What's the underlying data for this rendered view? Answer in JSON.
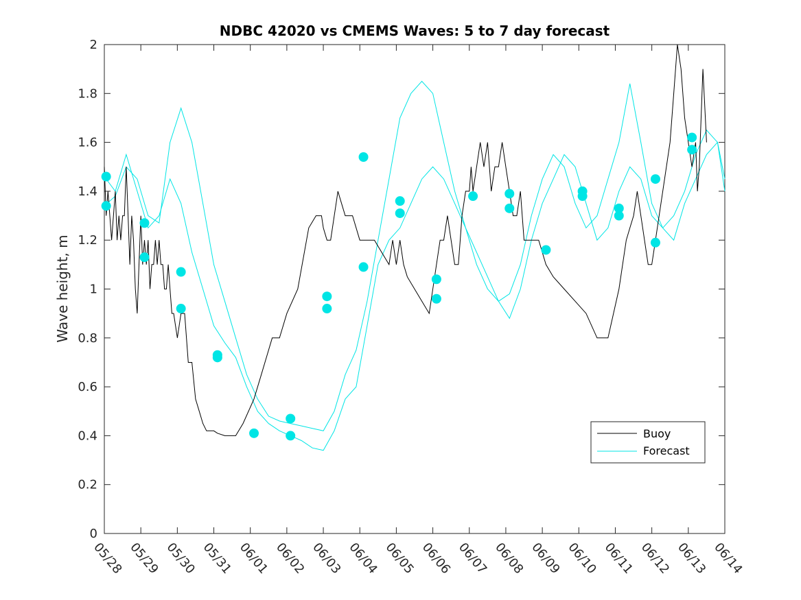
{
  "chart_data": {
    "type": "line",
    "title": "NDBC 42020 vs CMEMS Waves: 5 to 7 day forecast",
    "xlabel": "",
    "ylabel": "Wave height, m",
    "x_tick_labels": [
      "05/28",
      "05/29",
      "05/30",
      "05/31",
      "06/01",
      "06/02",
      "06/03",
      "06/04",
      "06/05",
      "06/06",
      "06/07",
      "06/08",
      "06/09",
      "06/10",
      "06/11",
      "06/12",
      "06/13",
      "06/14"
    ],
    "xlim": [
      0,
      17
    ],
    "ylim": [
      0,
      2
    ],
    "y_ticks": [
      "0",
      "0.2",
      "0.4",
      "0.6",
      "0.8",
      "1",
      "1.2",
      "1.4",
      "1.6",
      "1.8",
      "2"
    ],
    "legend_position": "lower-right",
    "colors": {
      "buoy": "#000000",
      "forecast": "#00e5e5"
    },
    "series": [
      {
        "name": "Buoy",
        "x": [
          0,
          0.05,
          0.1,
          0.15,
          0.2,
          0.25,
          0.3,
          0.35,
          0.4,
          0.45,
          0.5,
          0.55,
          0.6,
          0.65,
          0.7,
          0.75,
          0.8,
          0.85,
          0.9,
          0.95,
          1.0,
          1.05,
          1.1,
          1.15,
          1.2,
          1.25,
          1.3,
          1.35,
          1.4,
          1.45,
          1.5,
          1.55,
          1.6,
          1.65,
          1.7,
          1.75,
          1.8,
          1.85,
          1.9,
          1.95,
          2.0,
          2.1,
          2.2,
          2.3,
          2.4,
          2.5,
          2.6,
          2.7,
          2.8,
          2.9,
          3.0,
          3.1,
          3.3,
          3.6,
          3.8,
          4.1,
          4.3,
          4.6,
          4.8,
          5.0,
          5.3,
          5.6,
          5.8,
          5.95,
          6.0,
          6.1,
          6.2,
          6.3,
          6.35,
          6.4,
          6.5,
          6.6,
          6.7,
          6.8,
          7.0,
          7.2,
          7.4,
          7.6,
          7.8,
          7.9,
          8.0,
          8.1,
          8.2,
          8.3,
          8.5,
          8.7,
          8.9,
          9.1,
          9.2,
          9.3,
          9.4,
          9.5,
          9.6,
          9.7,
          9.75,
          9.8,
          9.9,
          10.0,
          10.05,
          10.1,
          10.2,
          10.3,
          10.4,
          10.5,
          10.6,
          10.7,
          10.8,
          10.9,
          11.0,
          11.1,
          11.2,
          11.3,
          11.4,
          11.5,
          11.6,
          11.7,
          11.8,
          11.9,
          12.0,
          12.1,
          12.3,
          12.6,
          12.9,
          13.2,
          13.5,
          13.8,
          14.1,
          14.3,
          14.4,
          14.5,
          14.6,
          14.7,
          14.8,
          14.9,
          15.0,
          15.1,
          15.2,
          15.3,
          15.4,
          15.5,
          15.6,
          15.7,
          15.8,
          15.9,
          16.0,
          16.1,
          16.2,
          16.25,
          16.3,
          16.4,
          16.5
        ],
        "y": [
          1.5,
          1.3,
          1.4,
          1.3,
          1.2,
          1.3,
          1.4,
          1.2,
          1.3,
          1.2,
          1.3,
          1.3,
          1.5,
          1.3,
          1.1,
          1.3,
          1.2,
          1.0,
          0.9,
          1.1,
          1.3,
          1.1,
          1.2,
          1.1,
          1.2,
          1.0,
          1.1,
          1.1,
          1.2,
          1.1,
          1.2,
          1.1,
          1.1,
          1.0,
          1.0,
          1.1,
          1.0,
          0.9,
          0.9,
          0.85,
          0.8,
          0.9,
          0.9,
          0.7,
          0.7,
          0.55,
          0.5,
          0.45,
          0.42,
          0.42,
          0.42,
          0.41,
          0.4,
          0.4,
          0.45,
          0.55,
          0.65,
          0.8,
          0.8,
          0.9,
          1.0,
          1.25,
          1.3,
          1.3,
          1.25,
          1.2,
          1.2,
          1.3,
          1.35,
          1.4,
          1.35,
          1.3,
          1.3,
          1.3,
          1.2,
          1.2,
          1.2,
          1.15,
          1.1,
          1.2,
          1.1,
          1.2,
          1.1,
          1.05,
          1.0,
          0.95,
          0.9,
          1.1,
          1.2,
          1.2,
          1.3,
          1.2,
          1.1,
          1.1,
          1.2,
          1.3,
          1.4,
          1.4,
          1.5,
          1.4,
          1.5,
          1.6,
          1.5,
          1.6,
          1.4,
          1.5,
          1.5,
          1.6,
          1.5,
          1.4,
          1.3,
          1.3,
          1.4,
          1.2,
          1.2,
          1.2,
          1.2,
          1.2,
          1.15,
          1.1,
          1.05,
          1.0,
          0.95,
          0.9,
          0.8,
          0.8,
          1.0,
          1.2,
          1.25,
          1.3,
          1.4,
          1.3,
          1.2,
          1.1,
          1.1,
          1.2,
          1.3,
          1.4,
          1.5,
          1.6,
          1.8,
          2.0,
          1.9,
          1.7,
          1.6,
          1.5,
          1.6,
          1.4,
          1.5,
          1.9,
          1.6
        ]
      },
      {
        "name": "Forecast",
        "x": [
          0,
          0.3,
          0.6,
          0.9,
          1.2,
          1.5,
          1.8,
          2.1,
          2.4,
          2.7,
          3.0,
          3.3,
          3.6,
          3.9,
          4.2,
          4.5,
          4.8,
          5.1,
          5.4,
          5.7,
          6.0,
          6.3,
          6.6,
          6.9,
          7.2,
          7.5,
          7.8,
          8.1,
          8.4,
          8.7,
          9.0,
          9.3,
          9.6,
          9.9,
          10.2,
          10.5,
          10.8,
          11.1,
          11.4,
          11.7,
          12.0,
          12.3,
          12.6,
          12.9,
          13.2,
          13.5,
          13.8,
          14.1,
          14.4,
          14.7,
          15.0,
          15.3,
          15.6,
          15.9,
          16.2,
          16.5,
          16.8,
          17.0
        ],
        "y": [
          1.46,
          1.4,
          1.55,
          1.4,
          1.25,
          1.3,
          1.45,
          1.35,
          1.15,
          1.0,
          0.85,
          0.78,
          0.72,
          0.6,
          0.5,
          0.45,
          0.42,
          0.4,
          0.38,
          0.35,
          0.34,
          0.42,
          0.55,
          0.6,
          0.85,
          1.1,
          1.2,
          1.25,
          1.35,
          1.45,
          1.5,
          1.45,
          1.35,
          1.25,
          1.15,
          1.05,
          0.95,
          0.88,
          1.0,
          1.2,
          1.35,
          1.45,
          1.55,
          1.5,
          1.35,
          1.2,
          1.25,
          1.4,
          1.5,
          1.45,
          1.3,
          1.25,
          1.2,
          1.35,
          1.45,
          1.55,
          1.6,
          1.45
        ]
      },
      {
        "name": "",
        "x": [
          0,
          0.3,
          0.6,
          0.9,
          1.2,
          1.5,
          1.8,
          2.1,
          2.4,
          2.7,
          3.0,
          3.3,
          3.6,
          3.9,
          4.2,
          4.5,
          4.8,
          5.1,
          5.4,
          5.7,
          6.0,
          6.3,
          6.6,
          6.9,
          7.2,
          7.5,
          7.8,
          8.1,
          8.4,
          8.7,
          9.0,
          9.3,
          9.6,
          9.9,
          10.2,
          10.5,
          10.8,
          11.1,
          11.4,
          11.7,
          12.0,
          12.3,
          12.6,
          12.9,
          13.2,
          13.5,
          13.8,
          14.1,
          14.4,
          14.7,
          15.0,
          15.3,
          15.6,
          15.9,
          16.2,
          16.5,
          16.8,
          17.0
        ],
        "y": [
          1.34,
          1.38,
          1.5,
          1.45,
          1.3,
          1.27,
          1.6,
          1.74,
          1.6,
          1.35,
          1.1,
          0.95,
          0.8,
          0.65,
          0.55,
          0.48,
          0.46,
          0.45,
          0.44,
          0.43,
          0.42,
          0.5,
          0.65,
          0.75,
          0.95,
          1.2,
          1.45,
          1.7,
          1.8,
          1.85,
          1.8,
          1.6,
          1.4,
          1.25,
          1.1,
          1.0,
          0.95,
          0.98,
          1.1,
          1.3,
          1.45,
          1.55,
          1.5,
          1.35,
          1.25,
          1.3,
          1.45,
          1.6,
          1.84,
          1.6,
          1.35,
          1.25,
          1.3,
          1.4,
          1.55,
          1.65,
          1.6,
          1.4
        ]
      }
    ],
    "markers": {
      "x": [
        0.05,
        0.05,
        1.1,
        1.1,
        2.1,
        2.1,
        3.1,
        3.1,
        4.1,
        5.1,
        5.1,
        6.1,
        6.1,
        7.1,
        7.1,
        8.1,
        8.1,
        9.1,
        9.1,
        10.1,
        11.1,
        11.1,
        12.1,
        13.1,
        13.1,
        14.1,
        14.1,
        15.1,
        15.1,
        16.1,
        16.1
      ],
      "y": [
        1.46,
        1.34,
        1.27,
        1.13,
        1.07,
        0.92,
        0.73,
        0.72,
        0.41,
        0.47,
        0.4,
        0.97,
        0.92,
        1.54,
        1.09,
        1.36,
        1.31,
        1.04,
        0.96,
        1.38,
        1.39,
        1.33,
        1.16,
        1.4,
        1.38,
        1.33,
        1.3,
        1.45,
        1.19,
        1.62,
        1.57
      ]
    }
  }
}
